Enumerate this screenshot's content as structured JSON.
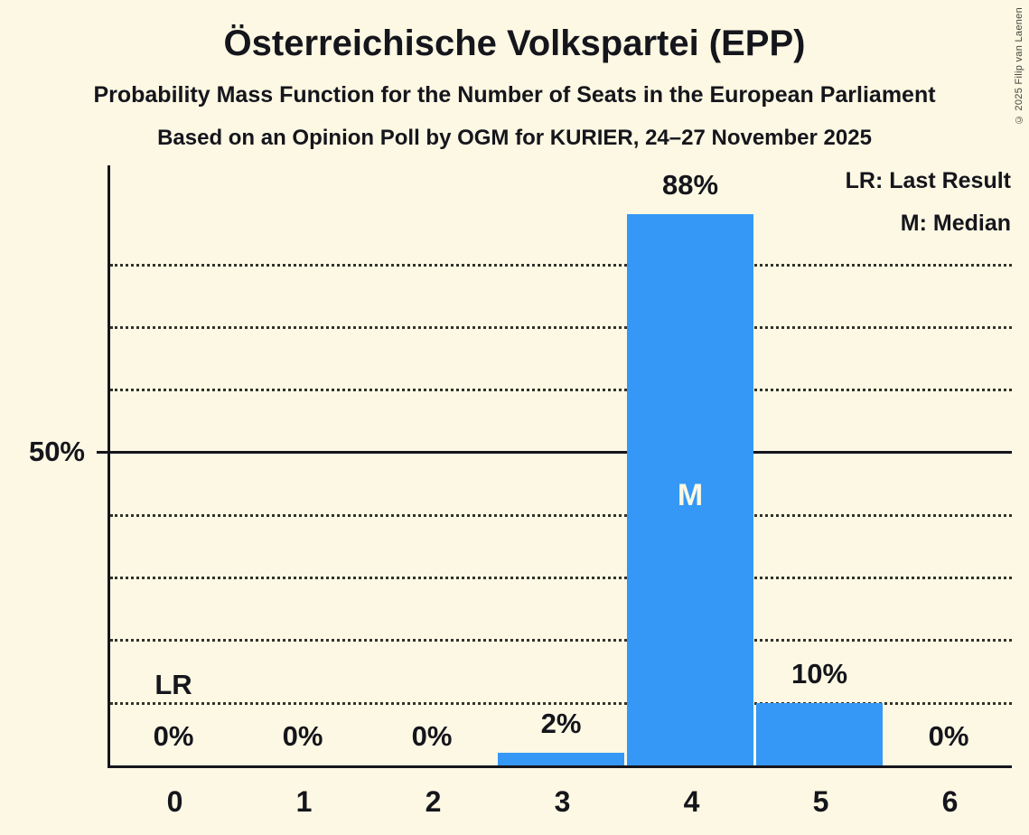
{
  "header": {
    "title": "Österreichische Volkspartei (EPP)",
    "subtitle": "Probability Mass Function for the Number of Seats in the European Parliament",
    "poll_info": "Based on an Opinion Poll by OGM for KURIER, 24–27 November 2025"
  },
  "legend": {
    "last_result": "LR: Last Result",
    "median": "M: Median"
  },
  "copyright": "© 2025 Filip van Laenen",
  "colors": {
    "background": "#FCF8E3",
    "bar": "#3598F6",
    "text": "#15151C",
    "grid_dotted": "#33332B",
    "bar_inner_label": "#FCF8E3"
  },
  "chart_data": {
    "type": "bar",
    "title": "Österreichische Volkspartei (EPP)",
    "categories": [
      "0",
      "1",
      "2",
      "3",
      "4",
      "5",
      "6"
    ],
    "values": [
      0,
      0,
      0,
      2,
      88,
      10,
      0
    ],
    "bar_labels": [
      "0%",
      "0%",
      "0%",
      "2%",
      "88%",
      "10%",
      "0%"
    ],
    "xlabel": "",
    "ylabel": "",
    "ylim": [
      0,
      96
    ],
    "y_major_line": {
      "value": 50,
      "label": "50%",
      "style": "solid"
    },
    "y_gridlines_dotted": [
      10,
      20,
      30,
      40,
      60,
      70,
      80
    ],
    "grid": "horizontal-dotted",
    "legend_position": "top-right",
    "annotations": [
      {
        "label": "LR",
        "seat": "0",
        "meaning": "Last Result"
      },
      {
        "label": "M",
        "seat": "4",
        "meaning": "Median"
      }
    ]
  }
}
